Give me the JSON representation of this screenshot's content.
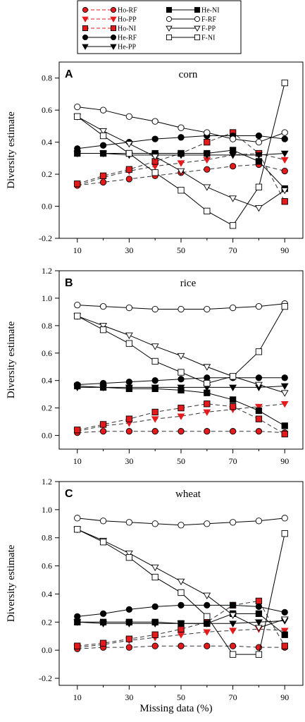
{
  "legend": {
    "entries": [
      {
        "key": "Ho-RF",
        "label": "Ho-RF",
        "marker": "circle",
        "fill": "#e41a1c",
        "dashed": true
      },
      {
        "key": "Ho-PP",
        "label": "Ho-PP",
        "marker": "triangle-down",
        "fill": "#e41a1c",
        "dashed": true
      },
      {
        "key": "Ho-NI",
        "label": "Ho-NI",
        "marker": "square",
        "fill": "#e41a1c",
        "dashed": true
      },
      {
        "key": "He-RF",
        "label": "He-RF",
        "marker": "circle",
        "fill": "#000000",
        "dashed": false
      },
      {
        "key": "He-PP",
        "label": "He-PP",
        "marker": "triangle-down",
        "fill": "#000000",
        "dashed": false
      },
      {
        "key": "He-NI",
        "label": "He-NI",
        "marker": "square",
        "fill": "#000000",
        "dashed": false
      },
      {
        "key": "F-RF",
        "label": "F-RF",
        "marker": "circle",
        "fill": "#ffffff",
        "dashed": false
      },
      {
        "key": "F-PP",
        "label": "F-PP",
        "marker": "triangle-down",
        "fill": "#ffffff",
        "dashed": false
      },
      {
        "key": "F-NI",
        "label": "F-NI",
        "marker": "square",
        "fill": "#ffffff",
        "dashed": false
      }
    ]
  },
  "colors": {
    "red": "#e41a1c",
    "black": "#000000",
    "white": "#ffffff"
  },
  "xlabel_shared": "Missing data (%)",
  "chart_data": [
    {
      "type": "line",
      "panel_letter": "A",
      "title": "corn",
      "ylabel": "Diversity estimate",
      "xlim": [
        3,
        97
      ],
      "ylim": [
        -0.2,
        0.9
      ],
      "yticks": [
        -0.2,
        0.0,
        0.2,
        0.4,
        0.6,
        0.8
      ],
      "xticks": [
        10,
        30,
        50,
        70,
        90
      ],
      "x": [
        10,
        20,
        30,
        40,
        50,
        60,
        70,
        80,
        90
      ],
      "series": [
        {
          "name": "Ho-RF",
          "values": [
            0.13,
            0.15,
            0.17,
            0.19,
            0.21,
            0.23,
            0.25,
            0.26,
            0.22
          ]
        },
        {
          "name": "Ho-PP",
          "values": [
            0.13,
            0.18,
            0.22,
            0.25,
            0.27,
            0.29,
            0.32,
            0.33,
            0.29
          ]
        },
        {
          "name": "Ho-NI",
          "values": [
            0.14,
            0.19,
            0.23,
            0.28,
            0.33,
            0.4,
            0.46,
            0.33,
            0.03
          ]
        },
        {
          "name": "He-RF",
          "values": [
            0.36,
            0.38,
            0.4,
            0.42,
            0.43,
            0.44,
            0.44,
            0.44,
            0.42
          ]
        },
        {
          "name": "He-PP",
          "values": [
            0.33,
            0.33,
            0.32,
            0.32,
            0.32,
            0.32,
            0.32,
            0.32,
            0.33
          ]
        },
        {
          "name": "He-NI",
          "values": [
            0.33,
            0.33,
            0.33,
            0.33,
            0.33,
            0.33,
            0.35,
            0.28,
            0.11
          ]
        },
        {
          "name": "F-RF",
          "values": [
            0.62,
            0.6,
            0.56,
            0.53,
            0.49,
            0.46,
            0.42,
            0.4,
            0.46
          ]
        },
        {
          "name": "F-PP",
          "values": [
            0.56,
            0.47,
            0.39,
            0.31,
            0.22,
            0.12,
            0.05,
            -0.01,
            0.1
          ]
        },
        {
          "name": "F-NI",
          "values": [
            0.56,
            0.44,
            0.33,
            0.21,
            0.1,
            -0.03,
            -0.12,
            0.12,
            0.77
          ]
        }
      ]
    },
    {
      "type": "line",
      "panel_letter": "B",
      "title": "rice",
      "ylabel": "Diversity estimate",
      "xlim": [
        3,
        97
      ],
      "ylim": [
        -0.1,
        1.2
      ],
      "yticks": [
        0.0,
        0.2,
        0.4,
        0.6,
        0.8,
        1.0,
        1.2
      ],
      "xticks": [
        10,
        30,
        50,
        70,
        90
      ],
      "x": [
        10,
        20,
        30,
        40,
        50,
        60,
        70,
        80,
        90
      ],
      "series": [
        {
          "name": "Ho-RF",
          "values": [
            0.02,
            0.03,
            0.03,
            0.03,
            0.03,
            0.03,
            0.03,
            0.03,
            0.02
          ]
        },
        {
          "name": "Ho-PP",
          "values": [
            0.03,
            0.07,
            0.09,
            0.12,
            0.14,
            0.17,
            0.19,
            0.21,
            0.23
          ]
        },
        {
          "name": "Ho-NI",
          "values": [
            0.04,
            0.08,
            0.12,
            0.17,
            0.2,
            0.23,
            0.21,
            0.12,
            0.01
          ]
        },
        {
          "name": "He-RF",
          "values": [
            0.37,
            0.38,
            0.39,
            0.4,
            0.41,
            0.42,
            0.42,
            0.42,
            0.42
          ]
        },
        {
          "name": "He-PP",
          "values": [
            0.35,
            0.35,
            0.35,
            0.35,
            0.35,
            0.35,
            0.35,
            0.35,
            0.36
          ]
        },
        {
          "name": "He-NI",
          "values": [
            0.36,
            0.35,
            0.34,
            0.34,
            0.33,
            0.31,
            0.26,
            0.18,
            0.07
          ]
        },
        {
          "name": "F-RF",
          "values": [
            0.95,
            0.94,
            0.93,
            0.92,
            0.92,
            0.92,
            0.93,
            0.94,
            0.96
          ]
        },
        {
          "name": "F-PP",
          "values": [
            0.87,
            0.8,
            0.73,
            0.65,
            0.58,
            0.5,
            0.43,
            0.37,
            0.31
          ]
        },
        {
          "name": "F-NI",
          "values": [
            0.87,
            0.77,
            0.67,
            0.54,
            0.46,
            0.38,
            0.43,
            0.61,
            0.94
          ]
        }
      ]
    },
    {
      "type": "line",
      "panel_letter": "C",
      "title": "wheat",
      "ylabel": "Diversity estimate",
      "xlabel": "Missing data (%)",
      "xlim": [
        3,
        97
      ],
      "ylim": [
        -0.25,
        1.2
      ],
      "yticks": [
        -0.2,
        0.0,
        0.2,
        0.4,
        0.6,
        0.8,
        1.0,
        1.2
      ],
      "xticks": [
        10,
        30,
        50,
        70,
        90
      ],
      "x": [
        10,
        20,
        30,
        40,
        50,
        60,
        70,
        80,
        90
      ],
      "series": [
        {
          "name": "Ho-RF",
          "values": [
            0.01,
            0.02,
            0.02,
            0.03,
            0.03,
            0.03,
            0.03,
            0.02,
            0.02
          ]
        },
        {
          "name": "Ho-PP",
          "values": [
            0.02,
            0.04,
            0.07,
            0.09,
            0.11,
            0.13,
            0.14,
            0.15,
            0.14
          ]
        },
        {
          "name": "Ho-NI",
          "values": [
            0.03,
            0.05,
            0.08,
            0.11,
            0.15,
            0.2,
            0.32,
            0.35,
            0.03
          ]
        },
        {
          "name": "He-RF",
          "values": [
            0.24,
            0.26,
            0.29,
            0.31,
            0.32,
            0.32,
            0.32,
            0.31,
            0.27
          ]
        },
        {
          "name": "He-PP",
          "values": [
            0.2,
            0.19,
            0.19,
            0.19,
            0.19,
            0.19,
            0.19,
            0.2,
            0.21
          ]
        },
        {
          "name": "He-NI",
          "values": [
            0.2,
            0.2,
            0.2,
            0.2,
            0.19,
            0.19,
            0.26,
            0.26,
            0.11
          ]
        },
        {
          "name": "F-RF",
          "values": [
            0.94,
            0.92,
            0.91,
            0.9,
            0.89,
            0.9,
            0.91,
            0.92,
            0.94
          ]
        },
        {
          "name": "F-PP",
          "values": [
            0.86,
            0.78,
            0.69,
            0.59,
            0.49,
            0.39,
            0.25,
            0.16,
            0.22
          ]
        },
        {
          "name": "F-NI",
          "values": [
            0.86,
            0.77,
            0.66,
            0.52,
            0.41,
            0.24,
            -0.03,
            -0.03,
            0.83
          ]
        }
      ]
    }
  ]
}
